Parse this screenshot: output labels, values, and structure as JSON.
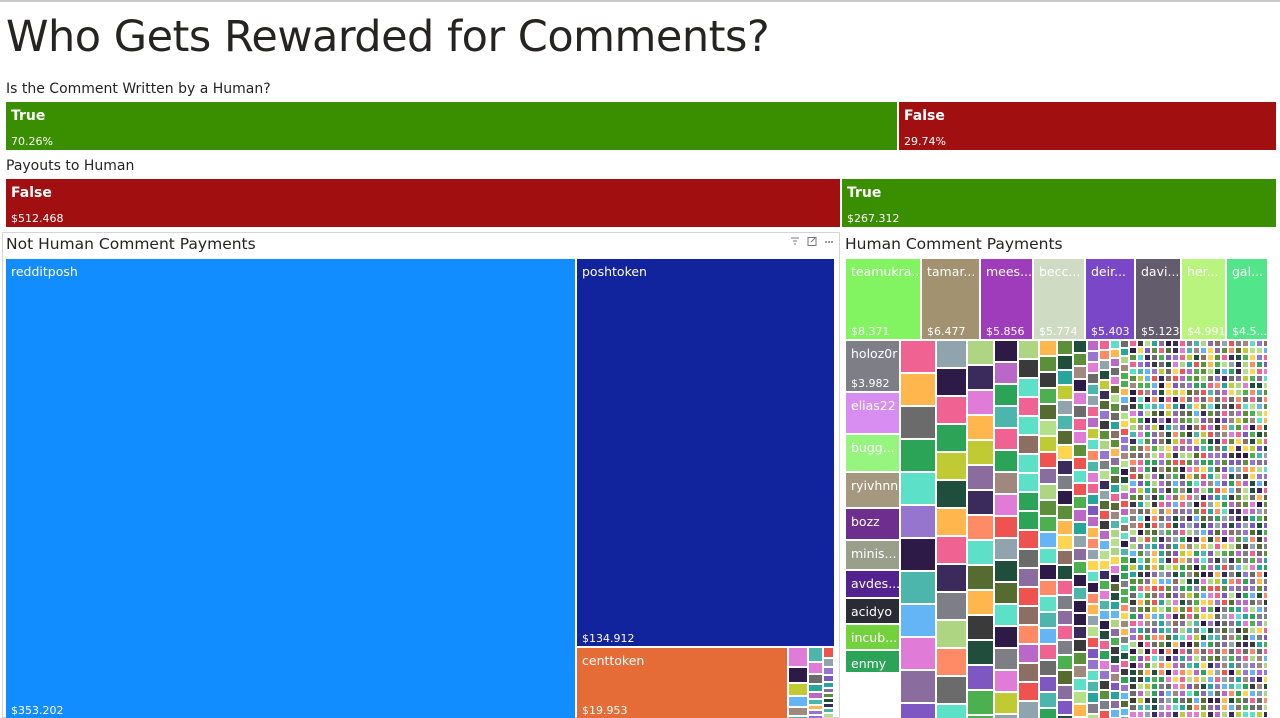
{
  "page": {
    "title": "Who Gets Rewarded for Comments?"
  },
  "colors": {
    "true_green": "#3a8f00",
    "false_red": "#a20f10",
    "reddit_blue": "#118dff",
    "posh_navy": "#12239e",
    "cent_orange": "#e66c37"
  },
  "header_icons": [
    "filter-icon",
    "focus-mode-icon",
    "more-options-icon"
  ],
  "chart_data": [
    {
      "type": "bar",
      "title": "Is the Comment Written by a Human?",
      "categories": [
        "True",
        "False"
      ],
      "values": [
        70.26,
        29.74
      ],
      "value_labels": [
        "70.26%",
        "29.74%"
      ],
      "colors": [
        "#3a8f00",
        "#a20f10"
      ]
    },
    {
      "type": "bar",
      "title": "Payouts to Human",
      "categories": [
        "False",
        "True"
      ],
      "values": [
        512.468,
        267.312
      ],
      "value_labels": [
        "$512.468",
        "$267.312"
      ],
      "colors": [
        "#a20f10",
        "#3a8f00"
      ]
    },
    {
      "type": "heatmap",
      "title": "Not Human Comment Payments",
      "items": [
        {
          "label": "redditposh",
          "value": 353.202,
          "value_label": "$353.202",
          "color": "#118dff"
        },
        {
          "label": "poshtoken",
          "value": 134.912,
          "value_label": "$134.912",
          "color": "#12239e"
        },
        {
          "label": "centtoken",
          "value": 19.953,
          "value_label": "$19.953",
          "color": "#e66c37"
        }
      ]
    },
    {
      "type": "heatmap",
      "title": "Human Comment Payments",
      "items": [
        {
          "label": "teamukra...",
          "value": 8.371,
          "value_label": "$8.371",
          "color": "#82f461"
        },
        {
          "label": "tamar...",
          "value": 6.477,
          "value_label": "$6.477",
          "color": "#a39270"
        },
        {
          "label": "mees...",
          "value": 5.856,
          "value_label": "$5.856",
          "color": "#9f3cbc"
        },
        {
          "label": "becc...",
          "value": 5.774,
          "value_label": "$5.774",
          "color": "#d0dbc4"
        },
        {
          "label": "deir...",
          "value": 5.403,
          "value_label": "$5.403",
          "color": "#7a47c8"
        },
        {
          "label": "davi...",
          "value": 5.123,
          "value_label": "$5.123",
          "color": "#625c6c"
        },
        {
          "label": "her...",
          "value": 4.991,
          "value_label": "$4.991",
          "color": "#b9f57e"
        },
        {
          "label": "gal...",
          "value": 4.5,
          "value_label": "$4.5...",
          "color": "#52e589"
        },
        {
          "label": "holoz0r",
          "value": 3.982,
          "value_label": "$3.982",
          "color": "#7d7e86"
        },
        {
          "label": "elias22",
          "value": null,
          "value_label": "",
          "color": "#d88ef0"
        },
        {
          "label": "bugg...",
          "value": null,
          "value_label": "",
          "color": "#96f57f"
        },
        {
          "label": "ryivhnn",
          "value": null,
          "value_label": "",
          "color": "#a4987e"
        },
        {
          "label": "bozz",
          "value": null,
          "value_label": "",
          "color": "#6d2e8e"
        },
        {
          "label": "minis...",
          "value": null,
          "value_label": "",
          "color": "#9a9f8c"
        },
        {
          "label": "avdes...",
          "value": null,
          "value_label": "",
          "color": "#52238e"
        },
        {
          "label": "acidyo",
          "value": null,
          "value_label": "",
          "color": "#2b2b36"
        },
        {
          "label": "incub...",
          "value": null,
          "value_label": "",
          "color": "#74d13e"
        },
        {
          "label": "enmy",
          "value": null,
          "value_label": "",
          "color": "#2ca457"
        }
      ]
    }
  ]
}
